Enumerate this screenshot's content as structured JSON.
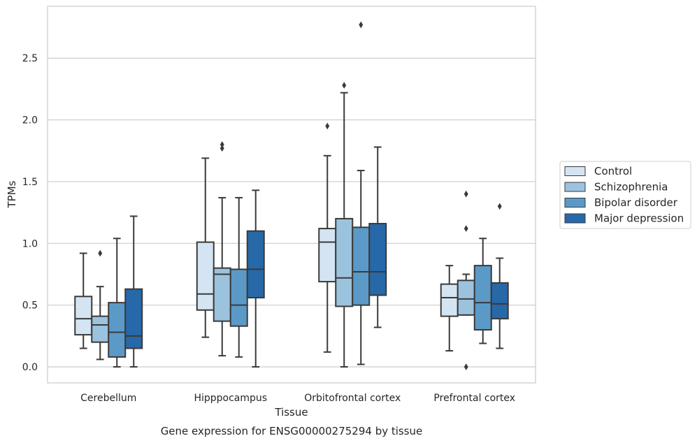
{
  "chart_data": {
    "type": "box",
    "title": "",
    "caption": "Gene expression for ENSG00000275294 by tissue",
    "xlabel": "Tissue",
    "ylabel": "TPMs",
    "ylim": [
      -0.13,
      2.92
    ],
    "yticks": [
      0.0,
      0.5,
      1.0,
      1.5,
      2.0,
      2.5
    ],
    "ytick_labels": [
      "0.0",
      "0.5",
      "1.0",
      "1.5",
      "2.0",
      "2.5"
    ],
    "grid": "horizontal",
    "legend_position": "right",
    "categories": [
      "Cerebellum",
      "Hipppocampus",
      "Orbitofrontal cortex",
      "Prefrontal cortex"
    ],
    "series": [
      {
        "name": "Control",
        "color": "#d4e4f2",
        "boxes": [
          {
            "whislo": 0.15,
            "q1": 0.26,
            "med": 0.39,
            "q3": 0.57,
            "whishi": 0.92,
            "fliers": []
          },
          {
            "whislo": 0.24,
            "q1": 0.46,
            "med": 0.59,
            "q3": 1.01,
            "whishi": 1.69,
            "fliers": []
          },
          {
            "whislo": 0.12,
            "q1": 0.69,
            "med": 1.01,
            "q3": 1.12,
            "whishi": 1.71,
            "fliers": [
              1.95
            ]
          },
          {
            "whislo": 0.13,
            "q1": 0.41,
            "med": 0.56,
            "q3": 0.67,
            "whishi": 0.82,
            "fliers": []
          }
        ]
      },
      {
        "name": "Schizophrenia",
        "color": "#9cc3de",
        "boxes": [
          {
            "whislo": 0.06,
            "q1": 0.2,
            "med": 0.34,
            "q3": 0.41,
            "whishi": 0.65,
            "fliers": [
              0.92
            ]
          },
          {
            "whislo": 0.09,
            "q1": 0.37,
            "med": 0.75,
            "q3": 0.8,
            "whishi": 1.37,
            "fliers": [
              1.77,
              1.8
            ]
          },
          {
            "whislo": 0.0,
            "q1": 0.49,
            "med": 0.72,
            "q3": 1.2,
            "whishi": 2.22,
            "fliers": [
              2.28
            ]
          },
          {
            "whislo": 0.42,
            "q1": 0.42,
            "med": 0.55,
            "q3": 0.7,
            "whishi": 0.75,
            "fliers": [
              0.0,
              1.12,
              1.4
            ]
          }
        ]
      },
      {
        "name": "Bipolar disorder",
        "color": "#5b9ac7",
        "boxes": [
          {
            "whislo": 0.0,
            "q1": 0.08,
            "med": 0.28,
            "q3": 0.52,
            "whishi": 1.04,
            "fliers": []
          },
          {
            "whislo": 0.08,
            "q1": 0.33,
            "med": 0.5,
            "q3": 0.79,
            "whishi": 1.37,
            "fliers": []
          },
          {
            "whislo": 0.02,
            "q1": 0.5,
            "med": 0.77,
            "q3": 1.13,
            "whishi": 1.59,
            "fliers": [
              2.77
            ]
          },
          {
            "whislo": 0.19,
            "q1": 0.3,
            "med": 0.52,
            "q3": 0.82,
            "whishi": 1.04,
            "fliers": []
          }
        ]
      },
      {
        "name": "Major depression",
        "color": "#2768a9",
        "boxes": [
          {
            "whislo": 0.0,
            "q1": 0.15,
            "med": 0.25,
            "q3": 0.63,
            "whishi": 1.22,
            "fliers": []
          },
          {
            "whislo": 0.0,
            "q1": 0.56,
            "med": 0.79,
            "q3": 1.1,
            "whishi": 1.43,
            "fliers": []
          },
          {
            "whislo": 0.32,
            "q1": 0.58,
            "med": 0.77,
            "q3": 1.16,
            "whishi": 1.78,
            "fliers": []
          },
          {
            "whislo": 0.15,
            "q1": 0.39,
            "med": 0.51,
            "q3": 0.68,
            "whishi": 0.88,
            "fliers": [
              1.3
            ]
          }
        ]
      }
    ]
  }
}
